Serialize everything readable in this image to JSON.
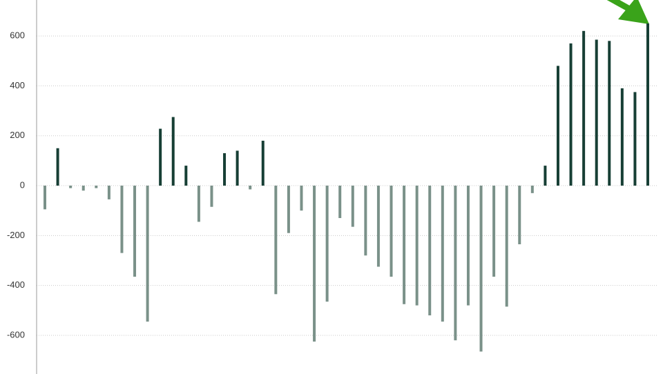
{
  "chart_data": {
    "type": "bar",
    "categories": [
      null,
      null,
      null,
      null,
      null,
      null,
      null,
      null,
      null,
      null,
      null,
      null,
      null,
      null,
      null,
      null,
      null,
      null,
      null,
      null,
      null,
      null,
      null,
      null,
      null,
      null,
      null,
      null,
      null,
      null,
      null,
      null,
      null,
      null,
      null,
      null,
      null,
      null,
      null,
      null,
      null,
      null,
      null,
      null,
      null,
      null,
      null,
      null
    ],
    "values": [
      -95,
      150,
      -10,
      -20,
      -10,
      -55,
      -270,
      -365,
      -545,
      228,
      275,
      80,
      -145,
      -85,
      130,
      140,
      -15,
      180,
      -435,
      -190,
      -100,
      -625,
      -465,
      -130,
      -165,
      -280,
      -325,
      -365,
      -475,
      -480,
      -520,
      -545,
      -620,
      -480,
      -665,
      -365,
      -485,
      -235,
      -30,
      80,
      480,
      570,
      620,
      585,
      580,
      390,
      375,
      650
    ],
    "positive_color": "#173f35",
    "negative_color": "#7a9189",
    "ylim": [
      -755,
      744
    ],
    "yticks": [
      -600,
      -400,
      -200,
      0,
      200,
      400,
      600
    ],
    "grid": true
  }
}
